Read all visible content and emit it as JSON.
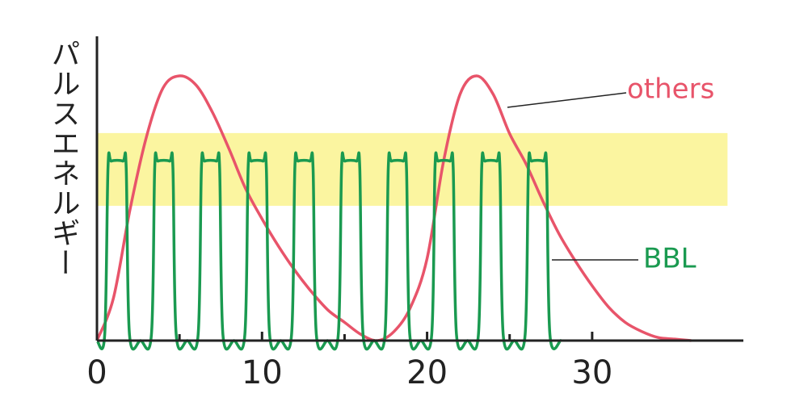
{
  "chart_data": {
    "type": "line",
    "ylabel": "パルスエネルギー",
    "xlim": [
      0,
      39.16
    ],
    "ylim": [
      0,
      100
    ],
    "xticks": [
      0,
      10,
      20,
      30
    ],
    "xminor": [
      5,
      15,
      25
    ],
    "band": {
      "ymin": 44.3,
      "ymax": 68.2,
      "xmin": 0,
      "xmax": 38.2,
      "color": "#fbf5a0"
    },
    "series": [
      {
        "name": "others",
        "color": "#e8546a",
        "x": [
          0,
          1,
          2,
          3,
          4,
          5,
          6,
          7,
          8,
          9,
          10,
          11,
          12,
          13,
          14,
          15,
          16,
          17,
          18,
          19,
          20,
          21,
          22,
          23,
          24,
          25,
          26,
          27,
          28,
          29,
          30,
          31,
          32,
          33,
          34,
          35,
          36
        ],
        "values": [
          0,
          14,
          43,
          67,
          83,
          87,
          84,
          75,
          63,
          50,
          40,
          31,
          23,
          16,
          10,
          6,
          2,
          0,
          3,
          11,
          27,
          59,
          81,
          87,
          81,
          68,
          58,
          46,
          35,
          26,
          18,
          11,
          6,
          3,
          1,
          0.5,
          0
        ]
      },
      {
        "name": "BBL",
        "color": "#1a9a50",
        "x": [
          0,
          0.47,
          0.67,
          0.87,
          1.57,
          1.77,
          1.97,
          2.64,
          3.3,
          3.5,
          3.7,
          4.4,
          4.6,
          4.8,
          5.47,
          6.13,
          6.33,
          6.53,
          7.23,
          7.43,
          7.63,
          8.3,
          8.96,
          9.16,
          9.36,
          10.06,
          10.26,
          10.46,
          11.13,
          11.79,
          11.99,
          12.19,
          12.89,
          13.09,
          13.29,
          13.96,
          14.62,
          14.82,
          15.02,
          15.72,
          15.92,
          16.12,
          16.79,
          17.45,
          17.65,
          17.85,
          18.55,
          18.75,
          18.95,
          19.62,
          20.28,
          20.48,
          20.68,
          21.38,
          21.58,
          21.78,
          22.45,
          23.11,
          23.31,
          23.51,
          24.21,
          24.41,
          24.61,
          25.28,
          25.94,
          26.14,
          26.34,
          27.04,
          27.24,
          27.44,
          28.1
        ],
        "values": [
          0,
          2,
          57,
          59,
          59,
          57,
          2,
          0,
          2,
          57,
          59,
          59,
          57,
          2,
          0,
          2,
          57,
          59,
          59,
          57,
          2,
          0,
          2,
          57,
          59,
          59,
          57,
          2,
          0,
          2,
          57,
          59,
          59,
          57,
          2,
          0,
          2,
          57,
          59,
          59,
          57,
          2,
          0,
          2,
          57,
          59,
          59,
          57,
          2,
          0,
          2,
          57,
          59,
          59,
          57,
          2,
          0,
          2,
          57,
          59,
          59,
          57,
          2,
          0,
          2,
          57,
          59,
          59,
          57,
          2,
          0
        ]
      }
    ]
  }
}
